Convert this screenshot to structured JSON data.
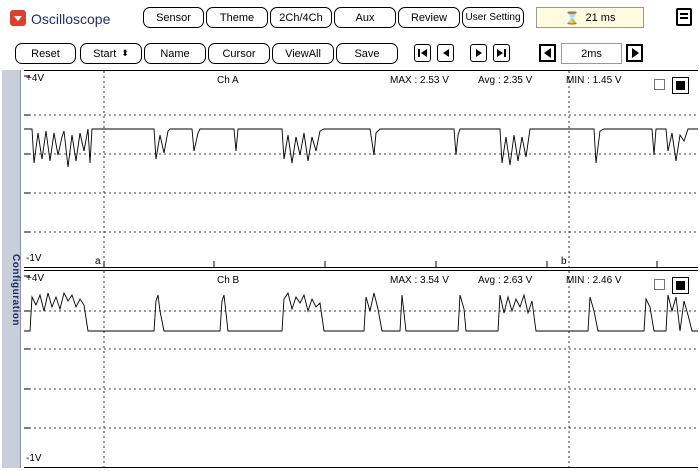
{
  "app": {
    "title": "Oscilloscope",
    "logo_color": "#d9412a"
  },
  "toolbar1": {
    "buttons": [
      "Sensor",
      "Theme",
      "2Ch/4Ch",
      "Aux",
      "Review",
      "User Setting"
    ],
    "sampling_display": "21 ms"
  },
  "toolbar2": {
    "reset": "Reset",
    "start": "Start",
    "name": "Name",
    "cursor": "Cursor",
    "viewall": "ViewAll",
    "save": "Save",
    "timebase": "2ms"
  },
  "sidebar": {
    "label": "Configuration"
  },
  "channels": [
    {
      "name": "Ch A",
      "top_label": "+4V",
      "bottom_label": "-1V",
      "max": "MAX : 2.53 V",
      "avg": "Avg : 2.35 V",
      "min": "MIN : 1.45 V",
      "cursor_a": "a",
      "cursor_b": "b"
    },
    {
      "name": "Ch B",
      "top_label": "+4V",
      "bottom_label": "-1V",
      "max": "MAX : 3.54 V",
      "avg": "Avg : 2.63 V",
      "min": "MIN : 2.46 V"
    }
  ]
}
